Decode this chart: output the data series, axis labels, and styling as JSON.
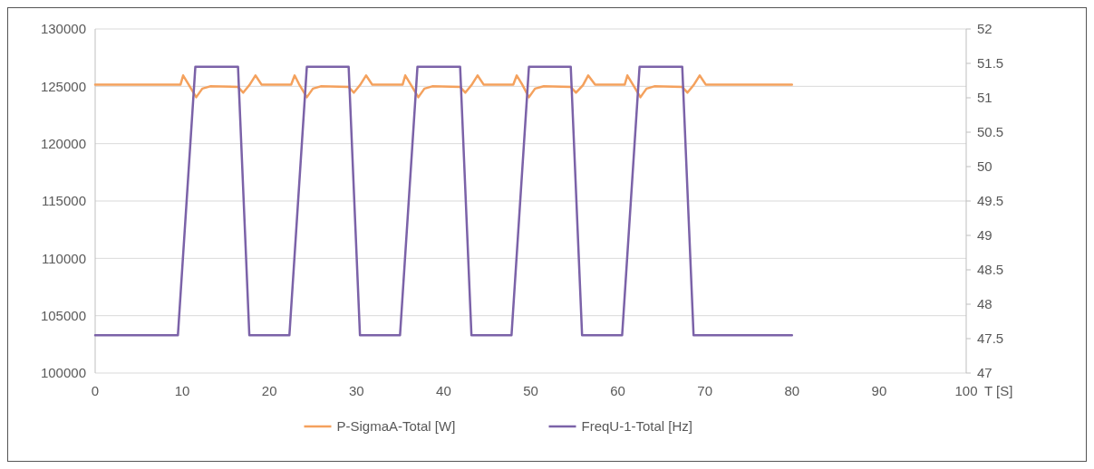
{
  "chart_data": {
    "type": "line",
    "xlabel": "T [S]",
    "xlim": [
      0,
      100
    ],
    "xticks": [
      0,
      10,
      20,
      30,
      40,
      50,
      60,
      70,
      80,
      90,
      100
    ],
    "ylim": [
      100000,
      130000
    ],
    "yticks": [
      100000,
      105000,
      110000,
      115000,
      120000,
      125000,
      130000
    ],
    "y2lim": [
      47,
      52
    ],
    "y2ticks": [
      47,
      47.5,
      48,
      48.5,
      49,
      49.5,
      50,
      50.5,
      51,
      51.5,
      52
    ],
    "grid": "y",
    "legend": "bottom",
    "marker": "none",
    "line_style": "solid",
    "series": [
      {
        "name": "P-SigmaA-Total [W]",
        "color": "#f4a15d",
        "x": [
          0,
          9.8,
          10.1,
          10.7,
          11.6,
          12.3,
          13.2,
          16.4,
          17.0,
          17.7,
          18.4,
          19.1,
          22.5,
          22.9,
          23.4,
          24.3,
          25.0,
          25.9,
          29.1,
          29.7,
          30.4,
          31.1,
          31.8,
          35.3,
          35.6,
          36.2,
          37.1,
          37.8,
          38.7,
          41.9,
          42.5,
          43.2,
          43.9,
          44.6,
          48.0,
          48.4,
          49.0,
          49.8,
          50.5,
          51.5,
          54.6,
          55.2,
          56.0,
          56.6,
          57.4,
          60.8,
          61.1,
          61.7,
          62.6,
          63.3,
          64.2,
          67.4,
          68.0,
          68.7,
          69.4,
          70.1,
          80
        ],
        "values": [
          125150,
          125150,
          125950,
          125200,
          124050,
          124800,
          125000,
          124950,
          124450,
          125100,
          125950,
          125150,
          125150,
          125950,
          125200,
          124050,
          124800,
          125000,
          124950,
          124450,
          125100,
          125950,
          125150,
          125150,
          125950,
          125200,
          124050,
          124800,
          125000,
          124950,
          124450,
          125100,
          125950,
          125150,
          125150,
          125950,
          125200,
          124050,
          124800,
          125000,
          124950,
          124450,
          125100,
          125950,
          125150,
          125150,
          125950,
          125200,
          124050,
          124800,
          125000,
          124950,
          124450,
          125100,
          125950,
          125150,
          125150
        ]
      },
      {
        "name": "FreqU-1-Total [Hz]",
        "color": "#7b62a8",
        "axis": "y2",
        "x": [
          0,
          9.5,
          11.5,
          16.4,
          17.7,
          22.3,
          24.3,
          29.1,
          30.4,
          35.0,
          37.0,
          41.9,
          43.2,
          47.8,
          49.8,
          54.6,
          55.9,
          60.5,
          62.5,
          67.4,
          68.7,
          80
        ],
        "values": [
          47.55,
          47.55,
          51.45,
          51.45,
          47.55,
          47.55,
          51.45,
          51.45,
          47.55,
          47.55,
          51.45,
          51.45,
          47.55,
          47.55,
          51.45,
          51.45,
          47.55,
          47.55,
          51.45,
          51.45,
          47.55,
          47.55
        ]
      }
    ]
  }
}
